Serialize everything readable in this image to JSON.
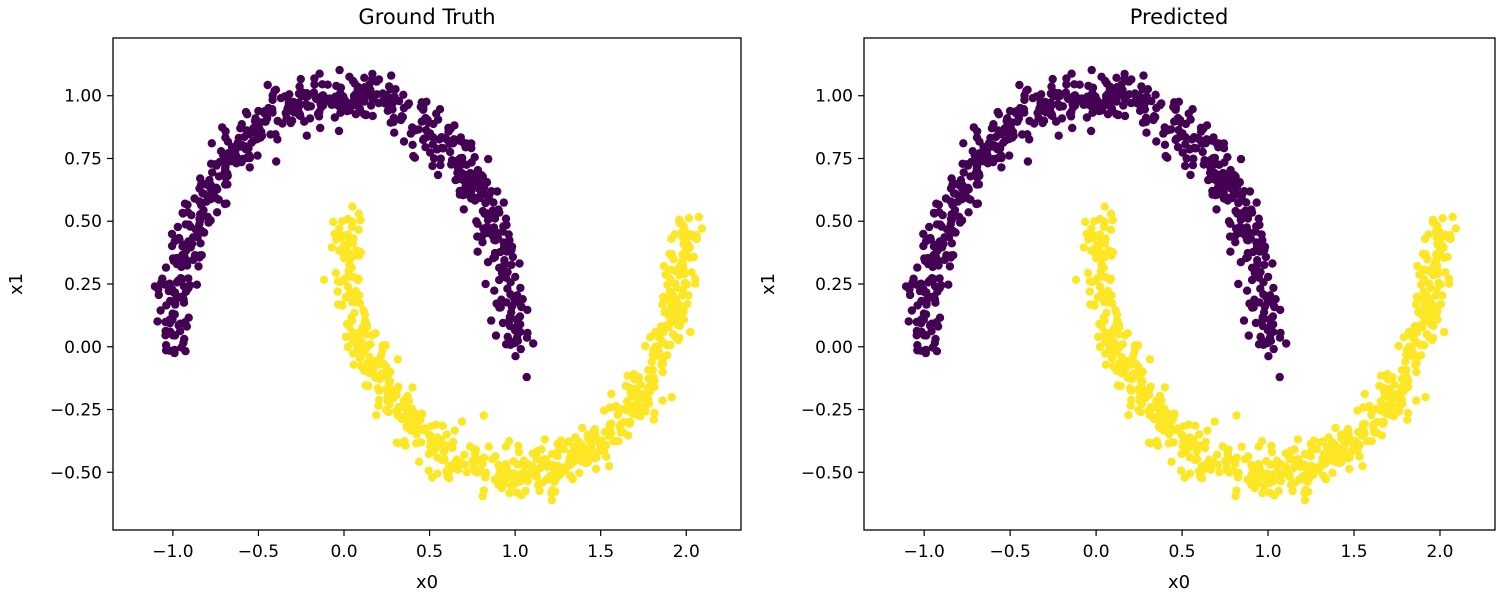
{
  "chart_data": [
    {
      "type": "scatter",
      "title": "Ground Truth",
      "xlabel": "x0",
      "ylabel": "x1",
      "xlim": [
        -1.35,
        2.32
      ],
      "ylim": [
        -0.73,
        1.23
      ],
      "xticks": [
        -1.0,
        -0.5,
        0.0,
        0.5,
        1.0,
        1.5,
        2.0
      ],
      "xtick_labels": [
        "−1.0",
        "−0.5",
        "0.0",
        "0.5",
        "1.0",
        "1.5",
        "2.0"
      ],
      "yticks": [
        -0.5,
        -0.25,
        0.0,
        0.25,
        0.5,
        0.75,
        1.0
      ],
      "ytick_labels": [
        "−0.50",
        "−0.25",
        "0.00",
        "0.25",
        "0.50",
        "0.75",
        "1.00"
      ],
      "grid": false,
      "series": [
        {
          "class": 0,
          "color": "#440154",
          "shape": "upper moon: x = cos(t), y = sin(t), t in [0, π], noise ≈ 0.05",
          "n_points": 650
        },
        {
          "class": 1,
          "color": "#fde725",
          "shape": "lower moon: x = 1 − cos(t), y = 0.5 − sin(t), t in [0, π], noise ≈ 0.05",
          "n_points": 650
        }
      ]
    },
    {
      "type": "scatter",
      "title": "Predicted",
      "xlabel": "x0",
      "ylabel": "x1",
      "xlim": [
        -1.35,
        2.32
      ],
      "ylim": [
        -0.73,
        1.23
      ],
      "xticks": [
        -1.0,
        -0.5,
        0.0,
        0.5,
        1.0,
        1.5,
        2.0
      ],
      "xtick_labels": [
        "−1.0",
        "−0.5",
        "0.0",
        "0.5",
        "1.0",
        "1.5",
        "2.0"
      ],
      "yticks": [
        -0.5,
        -0.25,
        0.0,
        0.25,
        0.5,
        0.75,
        1.0
      ],
      "ytick_labels": [
        "−0.50",
        "−0.25",
        "0.00",
        "0.25",
        "0.50",
        "0.75",
        "1.00"
      ],
      "grid": false,
      "series": [
        {
          "class": 0,
          "color": "#440154",
          "shape": "upper moon: x = cos(t), y = sin(t), t in [0, π], noise ≈ 0.05",
          "n_points": 650
        },
        {
          "class": 1,
          "color": "#fde725",
          "shape": "lower moon: x = 1 − cos(t), y = 0.5 − sin(t), t in [0, π], noise ≈ 0.05",
          "n_points": 650
        }
      ]
    }
  ]
}
